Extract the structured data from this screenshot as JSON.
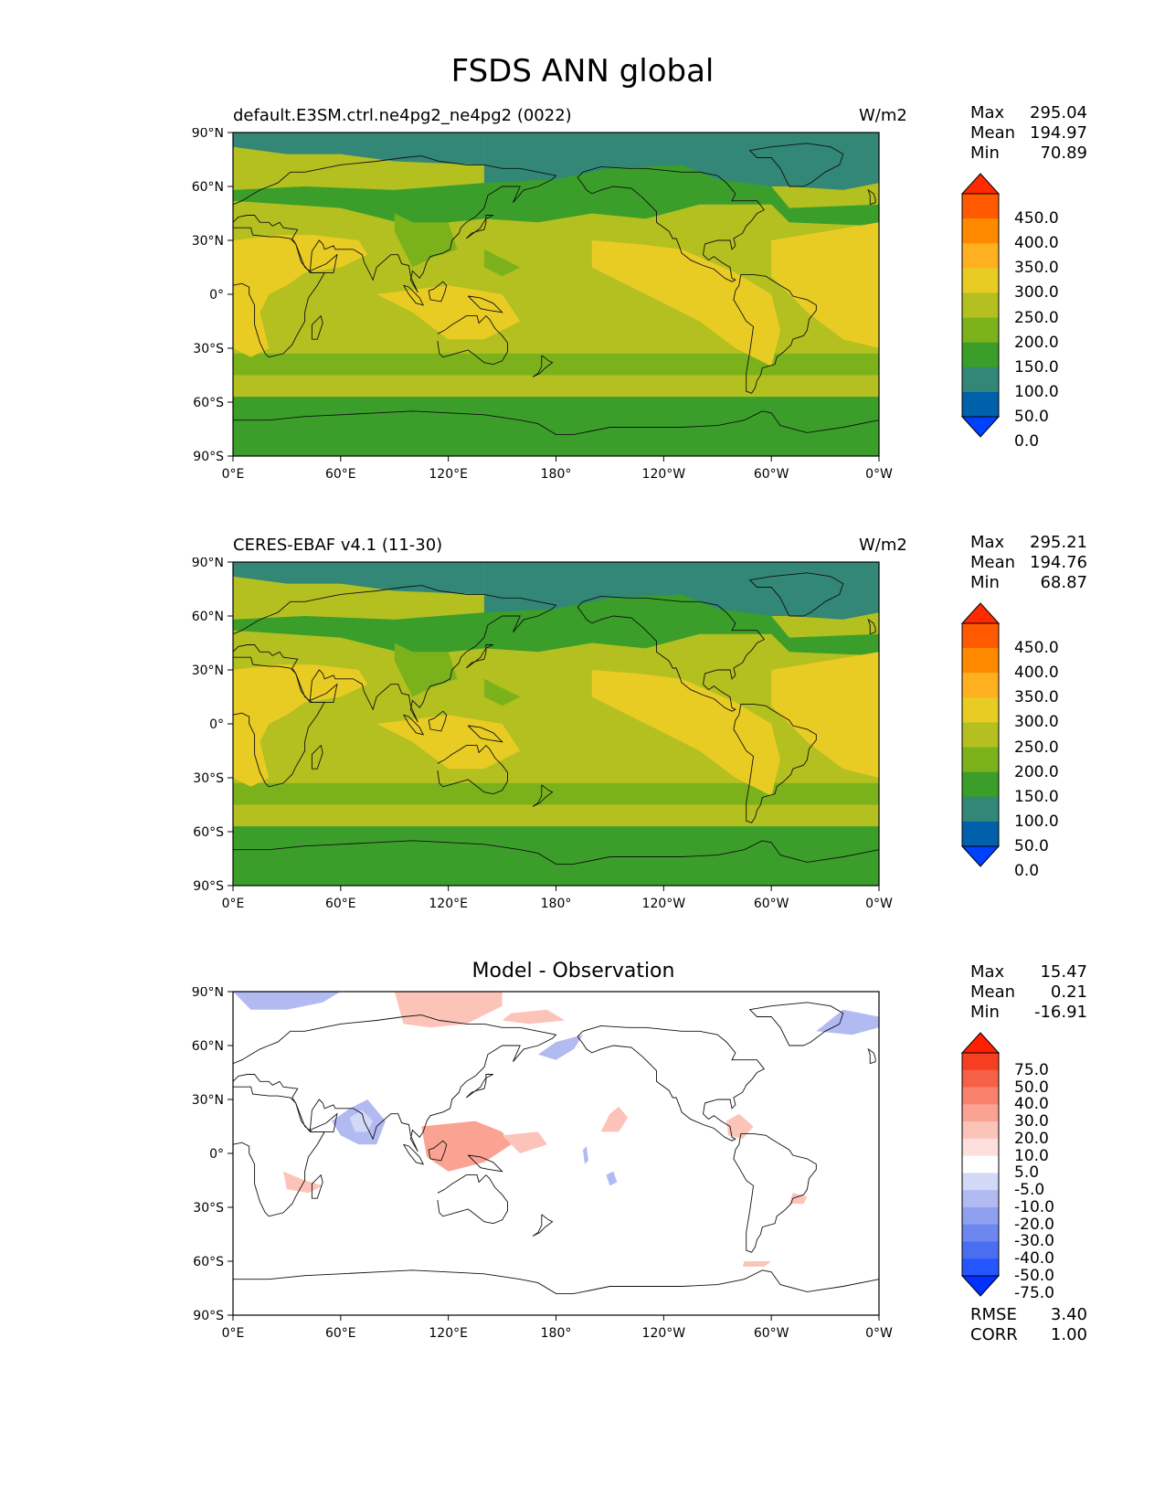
{
  "title": "FSDS ANN global",
  "axes": {
    "lat_ticks": [
      "90°N",
      "60°N",
      "30°N",
      "0°",
      "30°S",
      "60°S",
      "90°S"
    ],
    "lon_ticks": [
      "0°E",
      "60°E",
      "120°E",
      "180°",
      "120°W",
      "60°W",
      "0°W"
    ]
  },
  "panels": [
    {
      "id": "model",
      "title_left": "default.E3SM.ctrl.ne4pg2_ne4pg2 (0022)",
      "title_right": "W/m2",
      "title_center": "",
      "stats": [
        {
          "label": "Max",
          "value": "295.04"
        },
        {
          "label": "Mean",
          "value": "194.97"
        },
        {
          "label": "Min",
          "value": "70.89"
        }
      ],
      "colorbar_labels": [
        "450.0",
        "400.0",
        "350.0",
        "300.0",
        "250.0",
        "200.0",
        "150.0",
        "100.0",
        "50.0",
        "0.0"
      ]
    },
    {
      "id": "obs",
      "title_left": "CERES-EBAF v4.1 (11-30)",
      "title_right": "W/m2",
      "title_center": "",
      "stats": [
        {
          "label": "Max",
          "value": "295.21"
        },
        {
          "label": "Mean",
          "value": "194.76"
        },
        {
          "label": "Min",
          "value": "68.87"
        }
      ],
      "colorbar_labels": [
        "450.0",
        "400.0",
        "350.0",
        "300.0",
        "250.0",
        "200.0",
        "150.0",
        "100.0",
        "50.0",
        "0.0"
      ]
    },
    {
      "id": "diff",
      "title_left": "",
      "title_right": "",
      "title_center": "Model - Observation",
      "stats": [
        {
          "label": "Max",
          "value": "15.47"
        },
        {
          "label": "Mean",
          "value": "0.21"
        },
        {
          "label": "Min",
          "value": "-16.91"
        }
      ],
      "colorbar_labels": [
        "75.0",
        "50.0",
        "40.0",
        "30.0",
        "20.0",
        "10.0",
        "5.0",
        "-5.0",
        "-10.0",
        "-20.0",
        "-30.0",
        "-40.0",
        "-50.0",
        "-75.0"
      ],
      "metrics": [
        {
          "label": "RMSE",
          "value": "3.40"
        },
        {
          "label": "CORR",
          "value": "1.00"
        }
      ]
    }
  ],
  "colors": {
    "field_bands": [
      "#0040ff",
      "#0060aa",
      "#338777",
      "#3b9e2a",
      "#7bb21c",
      "#b3c020",
      "#e8cc24",
      "#ffb020",
      "#ff8a00",
      "#ff5a00",
      "#ff2a00"
    ],
    "diff_bands": [
      "#0030ff",
      "#2555ff",
      "#4a6ef0",
      "#6d86f0",
      "#8fa0f0",
      "#b1bbf2",
      "#d2d9f7",
      "#ffffff",
      "#fde0dc",
      "#fcc3b9",
      "#fba393",
      "#f9826c",
      "#f66046",
      "#f63e20",
      "#ff2000"
    ]
  }
}
